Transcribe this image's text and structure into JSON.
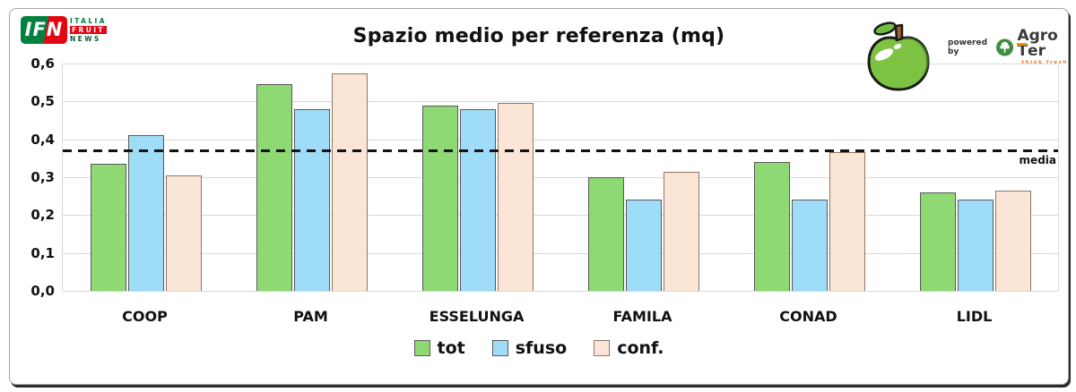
{
  "card": {
    "ifn_logo": {
      "abbr": "IFN",
      "line1": "ITALIA",
      "line2": "FRUIT",
      "line3": "NEWS"
    },
    "powered_by": "powered by",
    "agroter": {
      "name_pre": "Agro",
      "name_t": "T",
      "name_post": "er",
      "tagline": "think fresh"
    }
  },
  "chart_data": {
    "type": "bar",
    "title": "Spazio medio per referenza (mq)",
    "categories": [
      "COOP",
      "PAM",
      "ESSELUNGA",
      "FAMILA",
      "CONAD",
      "LIDL"
    ],
    "series": [
      {
        "name": "tot",
        "color": "#8ED973",
        "border": "#595959",
        "values": [
          0.335,
          0.545,
          0.49,
          0.3,
          0.34,
          0.26
        ]
      },
      {
        "name": "sfuso",
        "color": "#9EDCF7",
        "border": "#595959",
        "values": [
          0.41,
          0.48,
          0.48,
          0.24,
          0.24,
          0.24
        ]
      },
      {
        "name": "conf.",
        "color": "#FBE5D6",
        "border": "#8E7768",
        "values": [
          0.305,
          0.575,
          0.495,
          0.315,
          0.365,
          0.265
        ]
      }
    ],
    "ylim": [
      0,
      0.6
    ],
    "ytick_step": 0.1,
    "ytick_labels": [
      "0,0",
      "0,1",
      "0,2",
      "0,3",
      "0,4",
      "0,5",
      "0,6"
    ],
    "grid": true,
    "legend_position": "bottom",
    "reference_line": {
      "value": 0.37,
      "label": "media"
    }
  }
}
